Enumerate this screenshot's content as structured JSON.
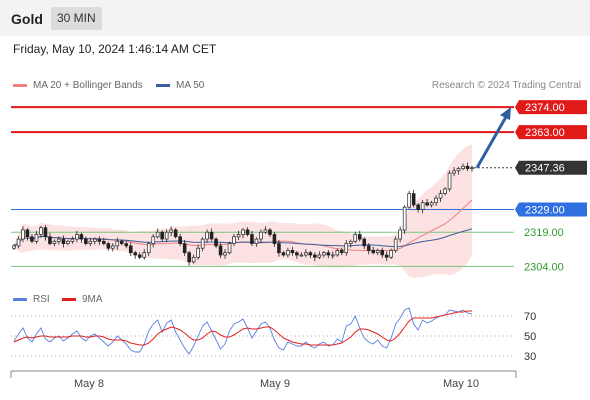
{
  "header": {
    "instrument": "Gold",
    "timeframe": "30 MIN"
  },
  "datetime": "Friday, May 10, 2024 1:46:14 AM CET",
  "legend": [
    {
      "label": "MA 20 + Bollinger Bands",
      "color": "#f08080"
    },
    {
      "label": "MA 50",
      "color": "#3b5d9c"
    }
  ],
  "copyright": "Research © 2024 Trading Central",
  "rsi_legend": [
    {
      "label": "RSI",
      "color": "#5b7fe0"
    },
    {
      "label": "9MA",
      "color": "#e02020"
    }
  ],
  "colors": {
    "resistance": "#e11919",
    "pivot": "#2f6fe0",
    "support": "#2e9a2e",
    "last": "#333333",
    "arrow": "#2f5fa0"
  },
  "chart_data": {
    "type": "candlestick",
    "y_range": [
      2298,
      2378
    ],
    "levels": [
      {
        "value": 2374.0,
        "label": "2374.00",
        "kind": "resistance"
      },
      {
        "value": 2363.0,
        "label": "2363.00",
        "kind": "resistance"
      },
      {
        "value": 2347.36,
        "label": "2347.36",
        "kind": "last"
      },
      {
        "value": 2329.0,
        "label": "2329.00",
        "kind": "pivot"
      },
      {
        "value": 2319.0,
        "label": "2319.00",
        "kind": "support"
      },
      {
        "value": 2304.0,
        "label": "2304.00",
        "kind": "support"
      }
    ],
    "x_labels": [
      "May 8",
      "May 9",
      "May 10"
    ],
    "close": [
      2313,
      2316,
      2320,
      2317,
      2315,
      2318,
      2321,
      2317,
      2314,
      2315,
      2316,
      2314,
      2315,
      2316,
      2318,
      2316,
      2314,
      2315,
      2316,
      2315,
      2314,
      2312,
      2313,
      2315,
      2314,
      2313,
      2310,
      2309,
      2308,
      2310,
      2314,
      2317,
      2319,
      2316,
      2319,
      2320,
      2317,
      2314,
      2310,
      2306,
      2308,
      2312,
      2316,
      2319,
      2316,
      2313,
      2309,
      2310,
      2314,
      2317,
      2318,
      2320,
      2318,
      2314,
      2316,
      2319,
      2320,
      2318,
      2314,
      2310,
      2309,
      2311,
      2310,
      2309,
      2309,
      2310,
      2309,
      2308,
      2309,
      2310,
      2309,
      2309,
      2311,
      2310,
      2314,
      2315,
      2318,
      2316,
      2313,
      2311,
      2310,
      2311,
      2309,
      2308,
      2311,
      2316,
      2320,
      2330,
      2336,
      2331,
      2329,
      2332,
      2331,
      2332,
      2334,
      2336,
      2338,
      2345,
      2346,
      2347,
      2348,
      2347,
      2347.36
    ],
    "rsi": {
      "levels": [
        70,
        50,
        30
      ],
      "rsi": [
        45,
        52,
        58,
        48,
        44,
        52,
        58,
        47,
        44,
        48,
        50,
        45,
        48,
        52,
        55,
        48,
        45,
        50,
        52,
        48,
        44,
        40,
        44,
        50,
        46,
        42,
        36,
        34,
        34,
        42,
        55,
        62,
        66,
        54,
        63,
        66,
        54,
        46,
        38,
        32,
        40,
        50,
        60,
        64,
        55,
        46,
        37,
        42,
        55,
        62,
        64,
        67,
        58,
        48,
        55,
        62,
        64,
        58,
        46,
        38,
        36,
        44,
        42,
        40,
        40,
        44,
        40,
        38,
        42,
        44,
        40,
        41,
        47,
        44,
        60,
        62,
        70,
        58,
        48,
        44,
        42,
        46,
        40,
        38,
        48,
        62,
        68,
        76,
        78,
        62,
        56,
        66,
        63,
        65,
        68,
        70,
        71,
        76,
        75,
        74,
        76,
        73,
        72
      ],
      "ma9": [
        44,
        46,
        48,
        49,
        48,
        49,
        50,
        50,
        49,
        49,
        49,
        49,
        49,
        50,
        50,
        50,
        49,
        49,
        50,
        50,
        49,
        47,
        46,
        46,
        46,
        45,
        43,
        42,
        41,
        41,
        43,
        47,
        52,
        55,
        57,
        59,
        58,
        56,
        53,
        49,
        46,
        46,
        48,
        52,
        55,
        54,
        51,
        49,
        49,
        51,
        54,
        57,
        58,
        57,
        57,
        58,
        59,
        59,
        56,
        52,
        48,
        46,
        44,
        43,
        42,
        42,
        41,
        41,
        41,
        41,
        41,
        41,
        42,
        43,
        46,
        49,
        54,
        57,
        57,
        56,
        54,
        52,
        49,
        46,
        45,
        48,
        53,
        59,
        65,
        68,
        68,
        68,
        68,
        68,
        69,
        70,
        71,
        72,
        73,
        74,
        74,
        75,
        75
      ]
    }
  }
}
